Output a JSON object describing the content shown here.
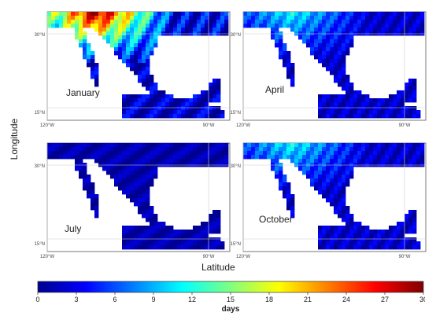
{
  "figure": {
    "y_axis_label": "Longitude",
    "x_axis_label": "Latitude"
  },
  "panels": [
    {
      "month": "January",
      "lat_ticks": [
        "30°N",
        "15°N"
      ],
      "lon_ticks": [
        "120°W",
        "90°W"
      ],
      "intensity": "high"
    },
    {
      "month": "April",
      "lat_ticks": [
        "30°N",
        "15°N"
      ],
      "lon_ticks": [
        "120°W",
        "90°W"
      ],
      "intensity": "medium"
    },
    {
      "month": "July",
      "lat_ticks": [
        "30°N",
        "15°N"
      ],
      "lon_ticks": [
        "120°W",
        "90°W"
      ],
      "intensity": "low"
    },
    {
      "month": "October",
      "lat_ticks": [
        "30°N",
        "15°N"
      ],
      "lon_ticks": [
        "120°W",
        "90°W"
      ],
      "intensity": "medium"
    }
  ],
  "colorbar": {
    "label": "days",
    "ticks": [
      "0",
      "3",
      "6",
      "9",
      "12",
      "15",
      "18",
      "21",
      "24",
      "27",
      "30"
    ],
    "min": 0,
    "max": 30,
    "colormap": [
      "#00008f",
      "#0000ff",
      "#0080ff",
      "#00ffff",
      "#80ff80",
      "#ffff00",
      "#ff8000",
      "#ff0000",
      "#800000"
    ]
  },
  "colors": {
    "land_low": "#1a2aa8",
    "ocean": "#ffffff",
    "coast": "#b0b0b0",
    "grid": "#cfcfcf",
    "frame": "#555555"
  }
}
